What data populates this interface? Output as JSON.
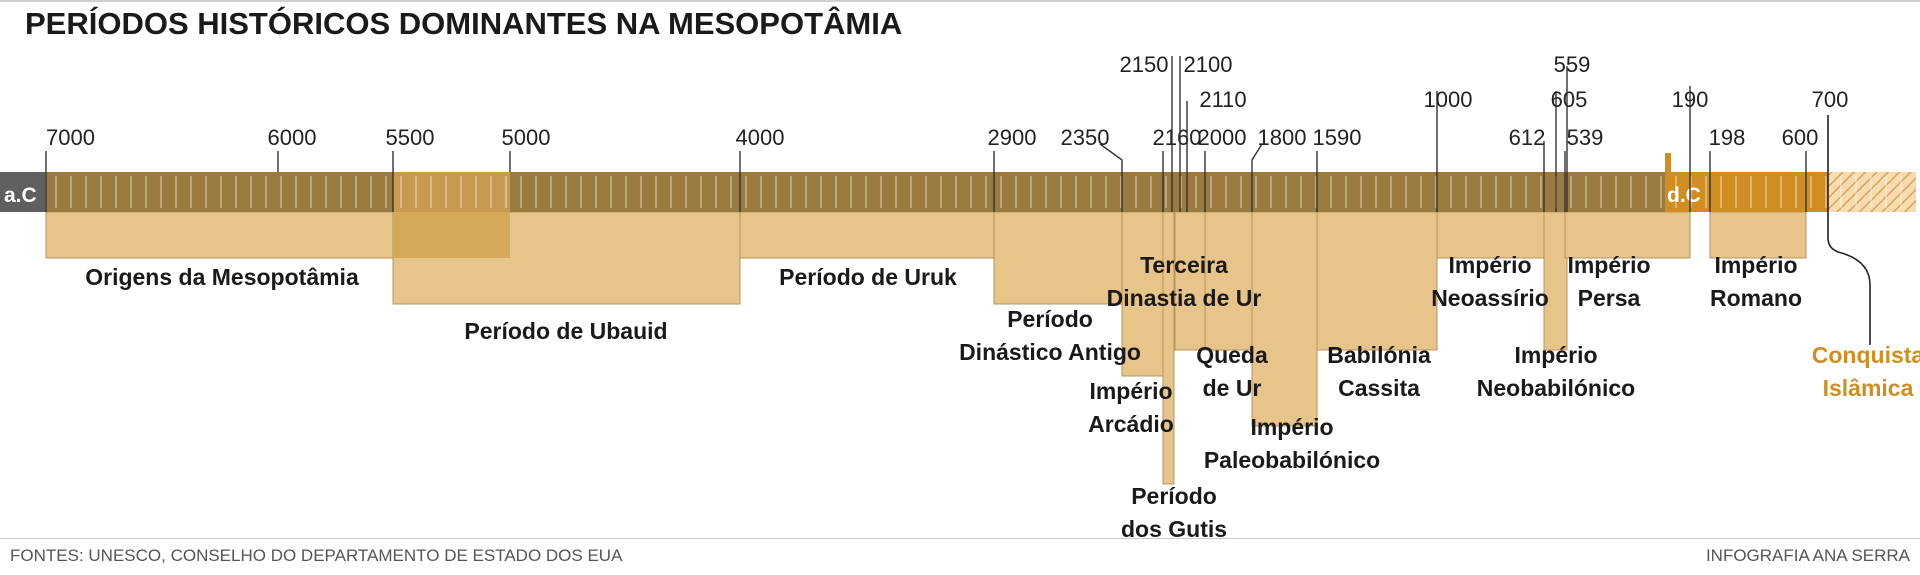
{
  "title": "PERÍODOS HISTÓRICOS DOMINANTES NA MESOPOTÂMIA",
  "era_labels": {
    "bc": "a.C",
    "ad": "d.C"
  },
  "colors": {
    "bar_bc": "#9b7a3f",
    "bar_ad": "#d08e22",
    "period_fill": "#e6c48a",
    "period_stroke": "#b8955a",
    "overlap_fill": "#d5a95a",
    "label": "#1a1a1a",
    "accent": "#d08e22",
    "era_marker": "#5f5f5f",
    "hatch": "#f0c48a"
  },
  "chart_data": {
    "type": "timeline",
    "ticks": [
      {
        "label": "7000"
      },
      {
        "label": "6000"
      },
      {
        "label": "5500"
      },
      {
        "label": "5000"
      },
      {
        "label": "4000"
      },
      {
        "label": "2900"
      },
      {
        "label": "2350"
      },
      {
        "label": "2160"
      },
      {
        "label": "2150"
      },
      {
        "label": "2100"
      },
      {
        "label": "2110"
      },
      {
        "label": "2000"
      },
      {
        "label": "1800"
      },
      {
        "label": "1590"
      },
      {
        "label": "1000"
      },
      {
        "label": "612"
      },
      {
        "label": "605"
      },
      {
        "label": "559"
      },
      {
        "label": "539"
      },
      {
        "label": "190"
      },
      {
        "label": "198"
      },
      {
        "label": "600"
      },
      {
        "label": "700"
      }
    ],
    "periods": [
      {
        "name": "Origens da Mesopotâmia",
        "start": "7000 a.C",
        "end": "5000 a.C"
      },
      {
        "name": "Período de Ubauid",
        "start": "5500 a.C",
        "end": "4000 a.C"
      },
      {
        "name": "Período de Uruk",
        "start": "4000 a.C",
        "end": "2900 a.C"
      },
      {
        "name": "Período Dinástico Antigo",
        "start": "2900 a.C",
        "end": "2350 a.C"
      },
      {
        "name": "Império Arcádio",
        "start": "2350 a.C",
        "end": "2160 a.C"
      },
      {
        "name": "Período dos Gutis",
        "start": "2160 a.C",
        "end": "2150 a.C"
      },
      {
        "name": "Terceira Dinastia de Ur",
        "start": "2110 a.C",
        "end": "2000 a.C"
      },
      {
        "name": "Queda de Ur",
        "start": "2000 a.C",
        "end": "1800 a.C"
      },
      {
        "name": "Império Paleobabilónico",
        "start": "1800 a.C",
        "end": "1590 a.C"
      },
      {
        "name": "Babilónia Cassita",
        "start": "1590 a.C",
        "end": "1000 a.C"
      },
      {
        "name": "Império Neoassírio",
        "start": "1000 a.C",
        "end": "605 a.C"
      },
      {
        "name": "Império Neobabilónico",
        "start": "612 a.C",
        "end": "539 a.C"
      },
      {
        "name": "Império Persa",
        "start": "559 a.C",
        "end": "190 a.C"
      },
      {
        "name": "Império Romano",
        "start": "198 d.C",
        "end": "600 d.C"
      },
      {
        "name": "Conquista Islâmica",
        "start": "700 d.C",
        "end": ""
      }
    ]
  },
  "footer": {
    "source": "FONTES: UNESCO, CONSELHO DO DEPARTAMENTO DE ESTADO DOS EUA",
    "credit": "INFOGRAFIA ANA SERRA"
  }
}
